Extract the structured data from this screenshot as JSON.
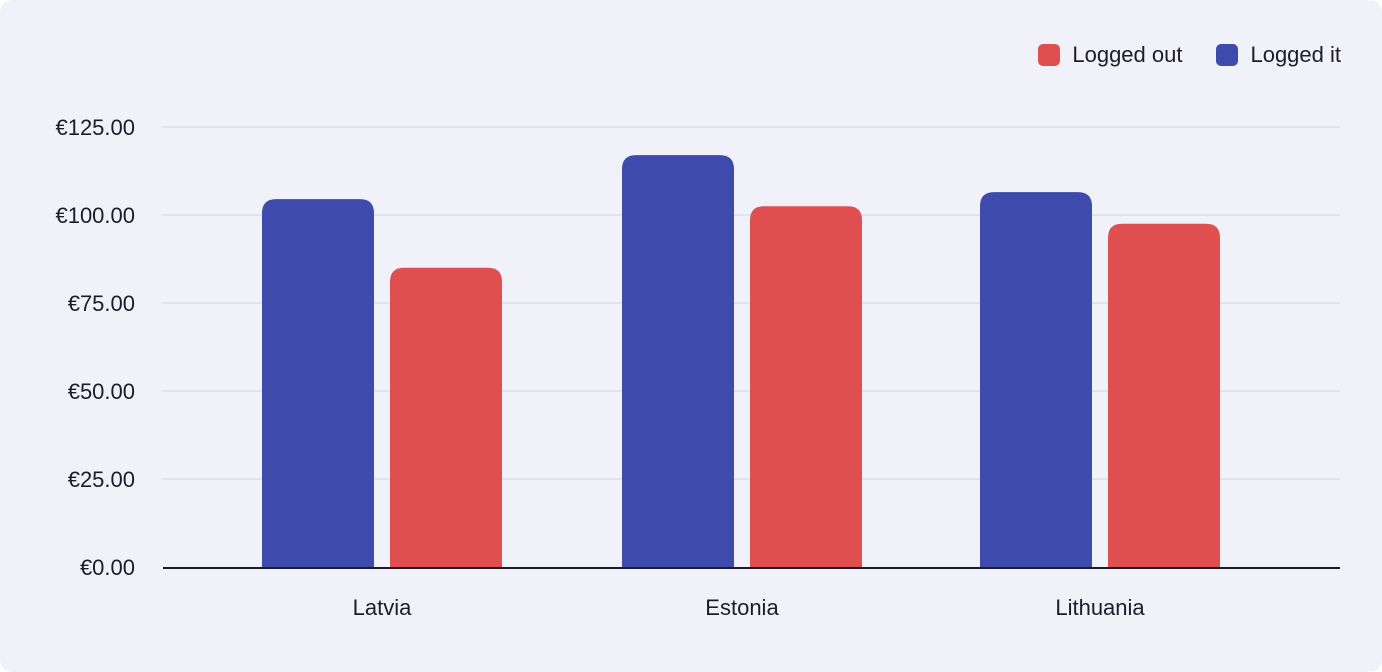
{
  "chart_data": {
    "type": "bar",
    "categories": [
      "Latvia",
      "Estonia",
      "Lithuania"
    ],
    "series": [
      {
        "name": "Logged it",
        "color": "#3f4aad",
        "values": [
          104.5,
          117,
          106.5
        ]
      },
      {
        "name": "Logged out",
        "color": "#df4f4f",
        "values": [
          85,
          102.5,
          97.5
        ]
      }
    ],
    "yticks": [
      "€0.00",
      "€25.00",
      "€50.00",
      "€75.00",
      "€100.00",
      "€125.00"
    ],
    "ytick_values": [
      0,
      25,
      50,
      75,
      100,
      125
    ],
    "ylim": [
      0,
      125
    ],
    "grid": true,
    "legend_position": "top-right",
    "legend_order": [
      1,
      0
    ]
  }
}
